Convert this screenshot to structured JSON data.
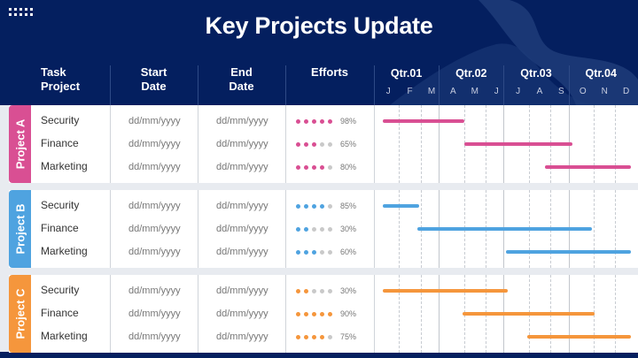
{
  "title": "Key Projects Update",
  "menu_icon": "dot-grid-icon",
  "columns": {
    "task_project": [
      "Task",
      "Project"
    ],
    "start_date": [
      "Start",
      "Date"
    ],
    "end_date": [
      "End",
      "Date"
    ],
    "efforts": "Efforts"
  },
  "quarters": [
    {
      "label": "Qtr.01",
      "months": [
        "J",
        "F",
        "M"
      ]
    },
    {
      "label": "Qtr.02",
      "months": [
        "A",
        "M",
        "J"
      ]
    },
    {
      "label": "Qtr.03",
      "months": [
        "J",
        "A",
        "S"
      ]
    },
    {
      "label": "Qtr.04",
      "months": [
        "O",
        "N",
        "D"
      ]
    }
  ],
  "groups": [
    {
      "name": "Project A",
      "color": "#d94f93",
      "tasks": [
        {
          "task": "Security",
          "start": "dd/mm/yyyy",
          "end": "dd/mm/yyyy",
          "effort_dots": 5,
          "effort": "98%",
          "bar_start_month": 0.4,
          "bar_end_month": 4.2
        },
        {
          "task": "Finance",
          "start": "dd/mm/yyyy",
          "end": "dd/mm/yyyy",
          "effort_dots": 3,
          "effort": "65%",
          "bar_start_month": 4.2,
          "bar_end_month": 9.2
        },
        {
          "task": "Marketing",
          "start": "dd/mm/yyyy",
          "end": "dd/mm/yyyy",
          "effort_dots": 4,
          "effort": "80%",
          "bar_start_month": 7.9,
          "bar_end_month": 11.9
        }
      ]
    },
    {
      "name": "Project B",
      "color": "#4fa3e0",
      "tasks": [
        {
          "task": "Security",
          "start": "dd/mm/yyyy",
          "end": "dd/mm/yyyy",
          "effort_dots": 4,
          "effort": "85%",
          "bar_start_month": 0.4,
          "bar_end_month": 2.1
        },
        {
          "task": "Finance",
          "start": "dd/mm/yyyy",
          "end": "dd/mm/yyyy",
          "effort_dots": 2,
          "effort": "30%",
          "bar_start_month": 2.0,
          "bar_end_month": 10.1
        },
        {
          "task": "Marketing",
          "start": "dd/mm/yyyy",
          "end": "dd/mm/yyyy",
          "effort_dots": 3,
          "effort": "60%",
          "bar_start_month": 6.1,
          "bar_end_month": 11.9
        }
      ]
    },
    {
      "name": "Project C",
      "color": "#f5963c",
      "tasks": [
        {
          "task": "Security",
          "start": "dd/mm/yyyy",
          "end": "dd/mm/yyyy",
          "effort_dots": 2,
          "effort": "30%",
          "bar_start_month": 0.4,
          "bar_end_month": 6.2
        },
        {
          "task": "Finance",
          "start": "dd/mm/yyyy",
          "end": "dd/mm/yyyy",
          "effort_dots": 5,
          "effort": "90%",
          "bar_start_month": 4.1,
          "bar_end_month": 10.2
        },
        {
          "task": "Marketing",
          "start": "dd/mm/yyyy",
          "end": "dd/mm/yyyy",
          "effort_dots": 4,
          "effort": "75%",
          "bar_start_month": 7.1,
          "bar_end_month": 11.9
        }
      ]
    }
  ],
  "colors": {
    "header_bg": "#041f5f",
    "inactive_dot": "#c9c9c9"
  }
}
